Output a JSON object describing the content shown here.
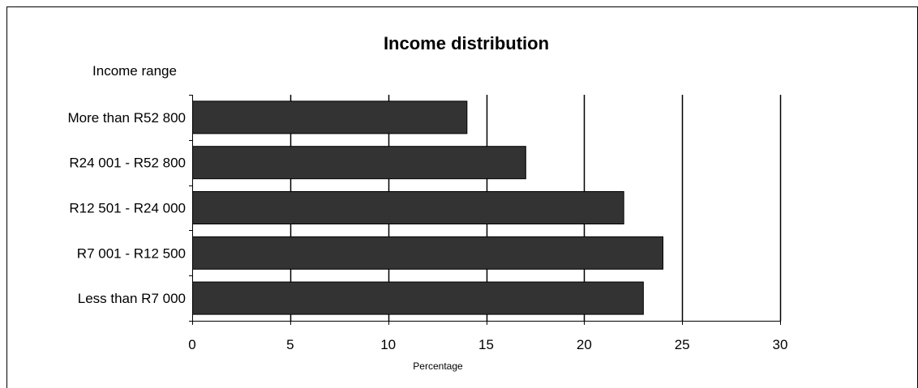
{
  "chart_data": {
    "type": "bar",
    "orientation": "horizontal",
    "title": "Income distribution",
    "ylabel": "Income range",
    "xlabel": "Percentage",
    "categories": [
      "More than R52 800",
      "R24 001 - R52 800",
      "R12 501 - R24 000",
      "R7 001 - R12 500",
      "Less than R7 000"
    ],
    "values": [
      14,
      17,
      22,
      24,
      23
    ],
    "xlim": [
      0,
      30
    ],
    "xticks": [
      0,
      5,
      10,
      15,
      20,
      25,
      30
    ],
    "grid": true,
    "bar_color": "#333333",
    "bar_edge_color": "#000000"
  }
}
